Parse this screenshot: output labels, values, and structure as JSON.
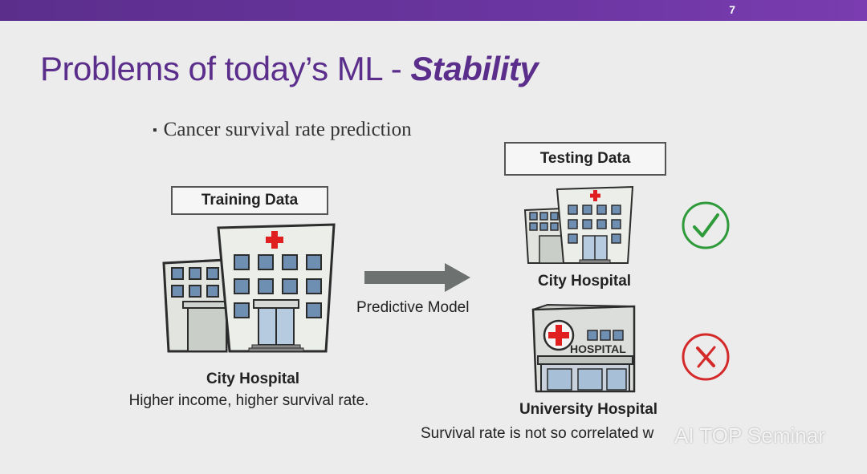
{
  "slide": {
    "page_number": "7",
    "title_main": "Problems of today’s ML - ",
    "title_emphasis": "Stability",
    "bullet": "Cancer survival rate prediction"
  },
  "training": {
    "label": "Training Data",
    "hospital_name": "City Hospital",
    "caption": "Higher income, higher survival rate."
  },
  "model": {
    "label": "Predictive Model"
  },
  "testing": {
    "label": "Testing Data",
    "hospital_1": {
      "name": "City Hospital",
      "result_icon": "check-icon"
    },
    "hospital_2": {
      "name": "University Hospital",
      "sign": "HOSPITAL",
      "result_icon": "cross-icon",
      "caption": "Survival rate is not so correlated w"
    }
  },
  "watermark": "AI TOP Seminar",
  "colors": {
    "accent": "#5b2e8c",
    "check": "#2e9a3a",
    "cross": "#d42a2a",
    "arrow": "#6d716f"
  }
}
